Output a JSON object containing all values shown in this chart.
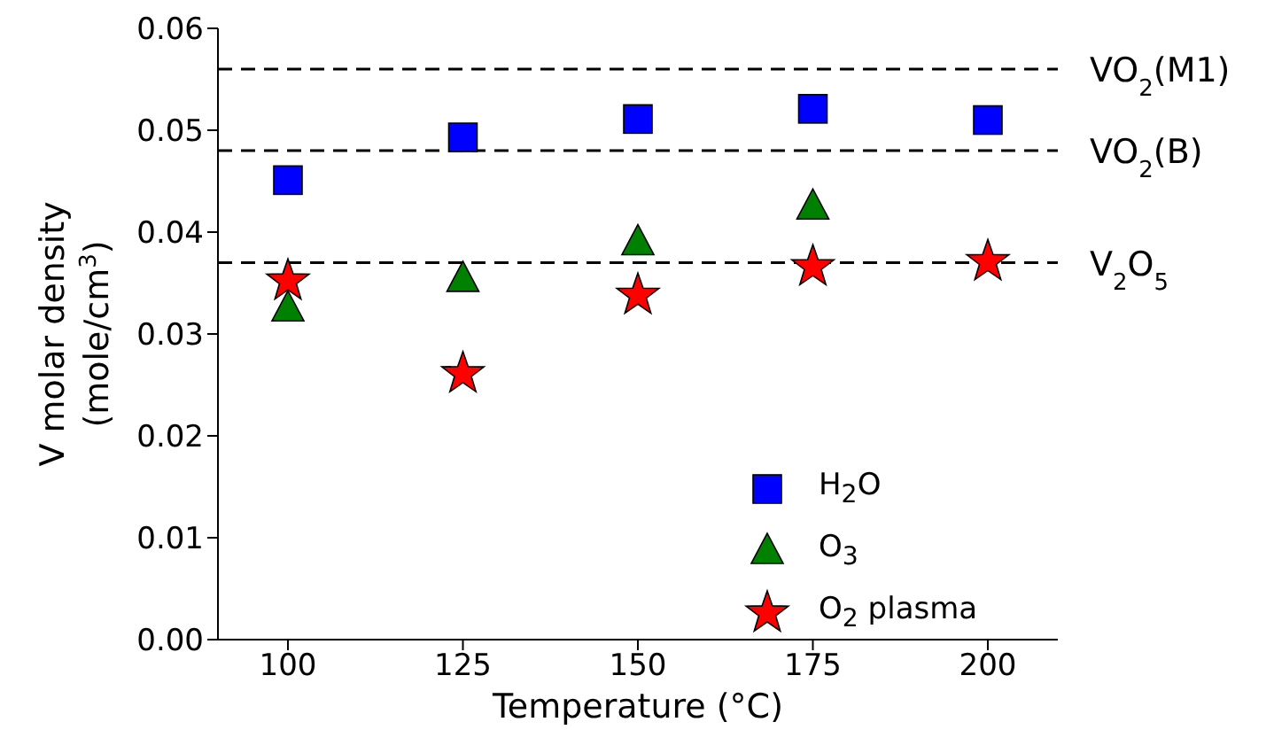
{
  "chart_data": {
    "type": "scatter",
    "xlabel": "Temperature (°C)",
    "ylabel": "V molar density\n(mole/cm$^{3}$)",
    "x": [
      100,
      125,
      150,
      175,
      200
    ],
    "series": [
      {
        "name": "H$_{2}$O",
        "color": "#0000ff",
        "marker": "square",
        "values": [
          0.0451,
          0.0493,
          0.0511,
          0.0521,
          0.051
        ]
      },
      {
        "name": "O$_{3}$",
        "color": "#008000",
        "marker": "triangle",
        "values": [
          0.0325,
          0.0354,
          0.039,
          0.0425,
          null
        ]
      },
      {
        "name": "O$_{2}$ plasma",
        "color": "#ff0000",
        "marker": "star",
        "values": [
          0.0352,
          0.0261,
          0.0338,
          0.0366,
          0.0371
        ]
      }
    ],
    "xlim": [
      90,
      210
    ],
    "xticks": [
      100,
      125,
      150,
      175,
      200
    ],
    "ylim": [
      0,
      0.06
    ],
    "yticks": [
      {
        "value": 0,
        "label": "0.00"
      },
      {
        "value": 0.01,
        "label": "0.01"
      },
      {
        "value": 0.02,
        "label": "0.02"
      },
      {
        "value": 0.03,
        "label": "0.03"
      },
      {
        "value": 0.04,
        "label": "0.04"
      },
      {
        "value": 0.05,
        "label": "0.05"
      },
      {
        "value": 0.06,
        "label": "0.06"
      }
    ],
    "ref_lines": [
      {
        "axis": "y",
        "value": 0.056,
        "label": "VO$_{2}$(M1)",
        "color": "#000000",
        "line_style": "dashed"
      },
      {
        "axis": "y",
        "value": 0.048,
        "label": "VO$_{2}$(B)",
        "color": "#000000",
        "line_style": "dashed"
      },
      {
        "axis": "y",
        "value": 0.037,
        "label": "V$_{2}$O$_{5}$",
        "color": "#000000",
        "line_style": "dashed"
      }
    ],
    "grid": false,
    "legend": "bottom right"
  }
}
